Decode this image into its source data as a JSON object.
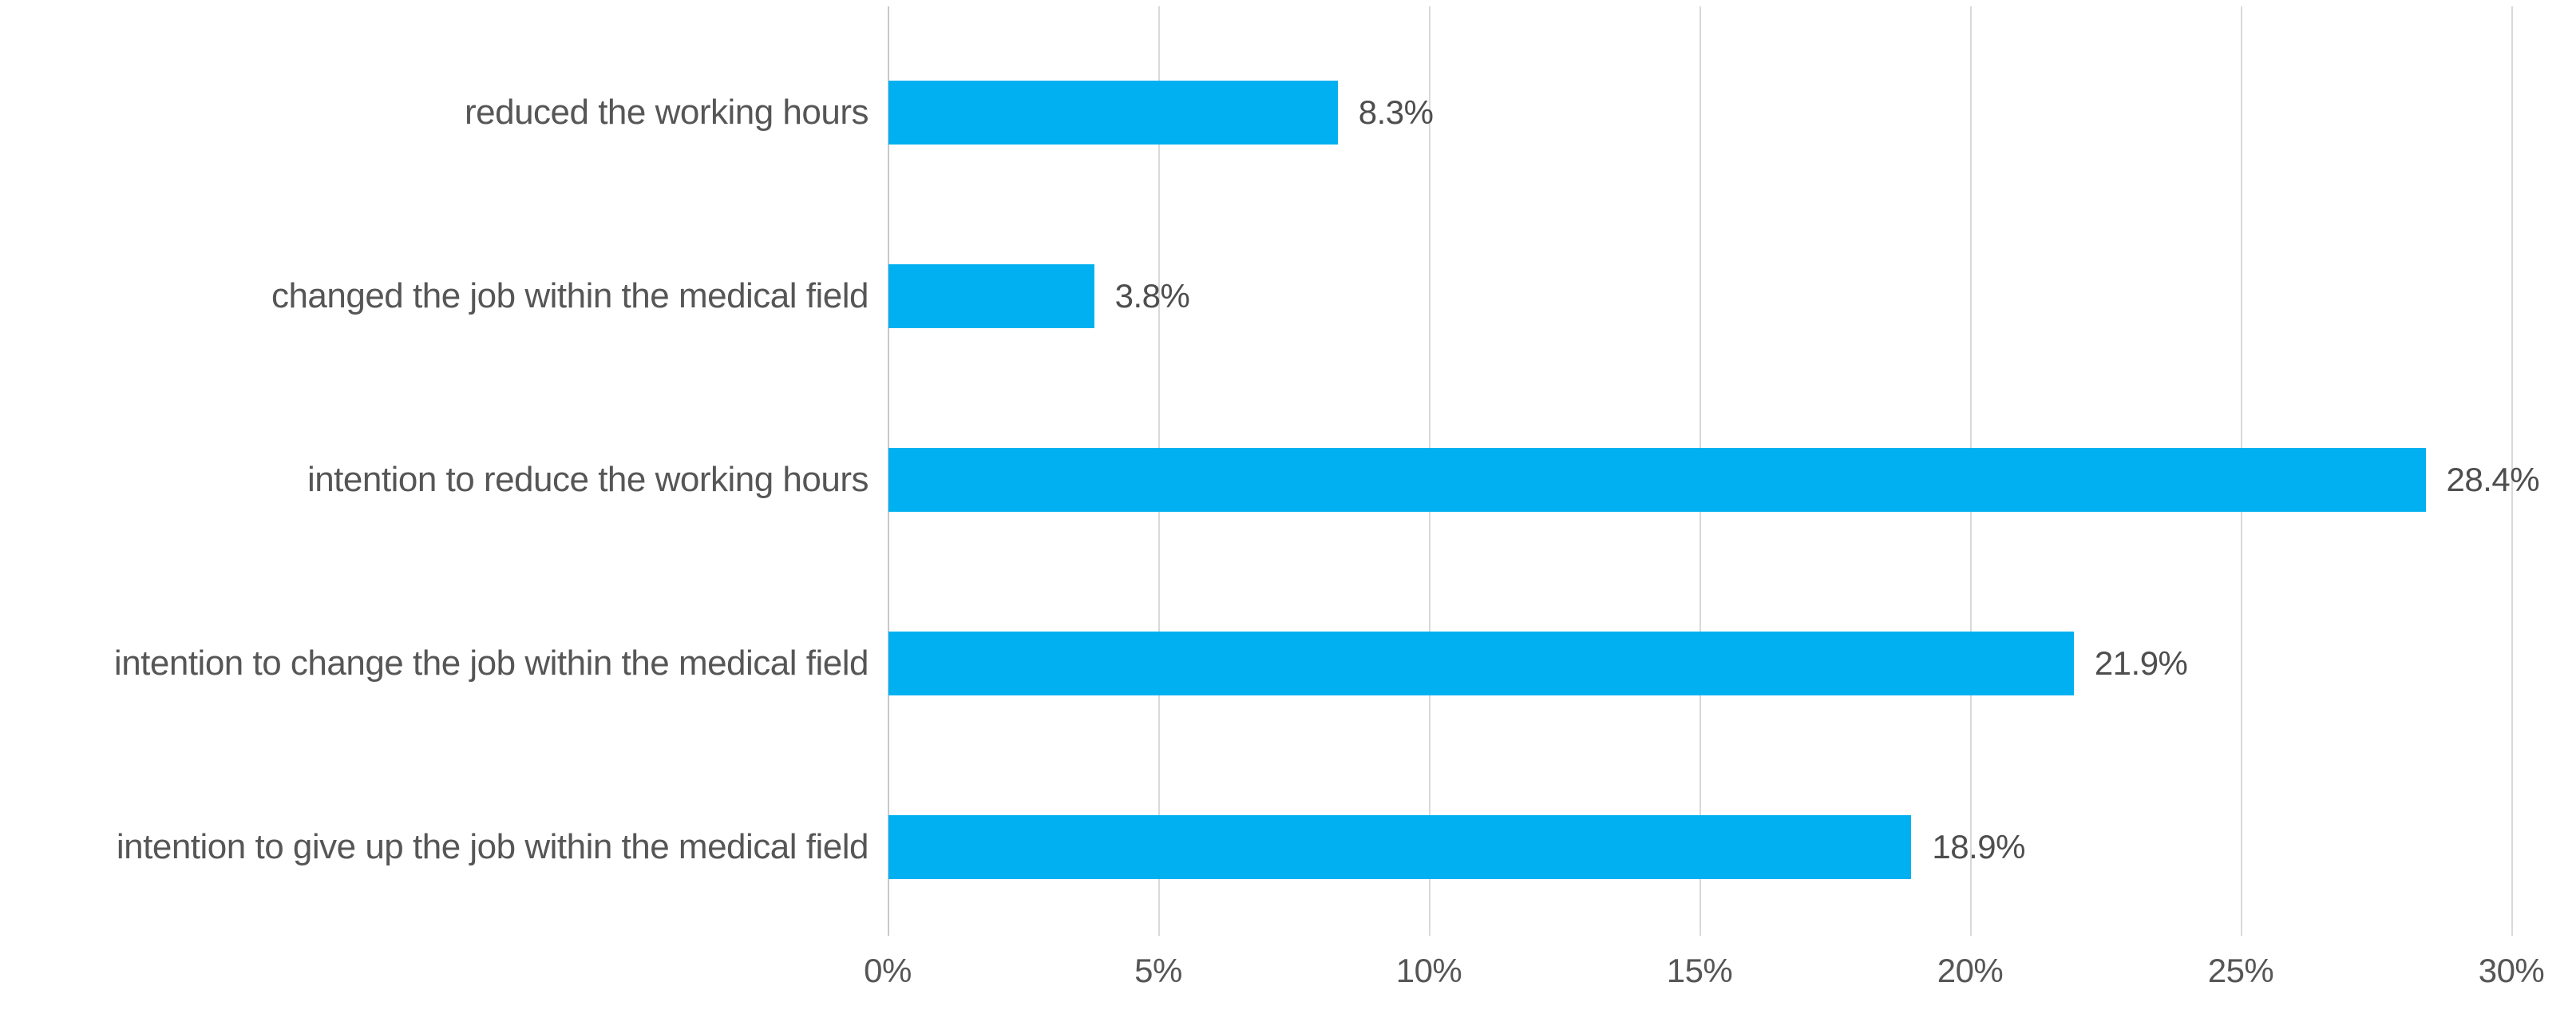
{
  "chart_data": {
    "type": "bar",
    "orientation": "horizontal",
    "title": "",
    "xlabel": "",
    "ylabel": "",
    "categories": [
      "reduced the working hours",
      "changed the job within the medical field",
      "intention to reduce the working hours",
      "intention to change the job within the medical field",
      "intention to give up the job within the medical field"
    ],
    "values": [
      8.3,
      3.8,
      28.4,
      21.9,
      18.9
    ],
    "value_labels": [
      "8.3%",
      "3.8%",
      "28.4%",
      "21.9%",
      "18.9%"
    ],
    "x_tick_labels": [
      "0%",
      "5%",
      "10%",
      "15%",
      "20%",
      "25%",
      "30%"
    ],
    "x_tick_values": [
      0,
      5,
      10,
      15,
      20,
      25,
      30
    ],
    "xlim": [
      0,
      30
    ],
    "grid": true,
    "legend": false,
    "colors": {
      "bar": "#00B0F0",
      "gridline": "#D9D9D9",
      "axis_line": "#C9C9C9",
      "category_text": "#565656",
      "value_text": "#4E4E4E",
      "tick_text": "#565656",
      "background": "#FFFFFF"
    }
  }
}
